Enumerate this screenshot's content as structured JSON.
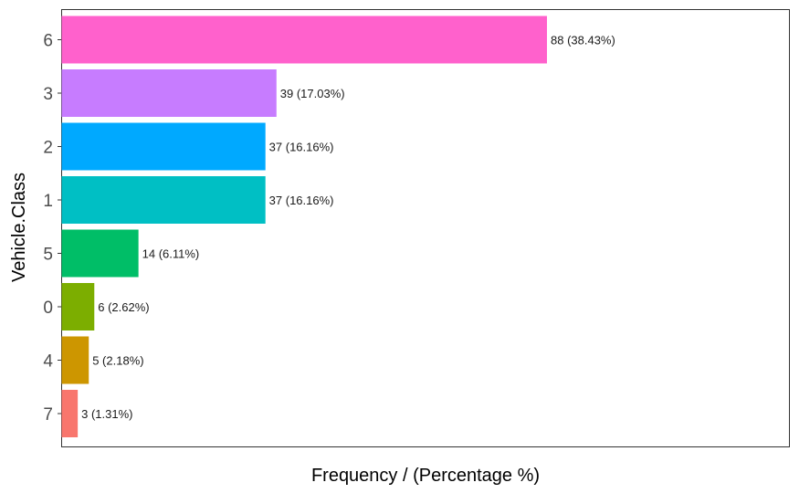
{
  "chart_data": {
    "type": "bar",
    "orientation": "horizontal",
    "title": "",
    "xlabel": "Frequency / (Percentage %)",
    "ylabel": "Vehicle.Class",
    "categories": [
      "6",
      "3",
      "2",
      "1",
      "5",
      "0",
      "4",
      "7"
    ],
    "values": [
      88,
      39,
      37,
      37,
      14,
      6,
      5,
      3
    ],
    "data_labels": [
      "88 (38.43%)",
      "39 (17.03%)",
      "37 (16.16%)",
      "37 (16.16%)",
      "14 (6.11%)",
      "6 (2.62%)",
      "5 (2.18%)",
      "3 (1.31%)"
    ],
    "colors": [
      "#FF61CC",
      "#C77CFF",
      "#00A9FF",
      "#00BFC4",
      "#00BE67",
      "#7CAE00",
      "#CD9600",
      "#F8766D"
    ],
    "xlim": [
      0,
      132
    ],
    "grid": false,
    "legend": "none",
    "x_ticks_shown": false
  }
}
